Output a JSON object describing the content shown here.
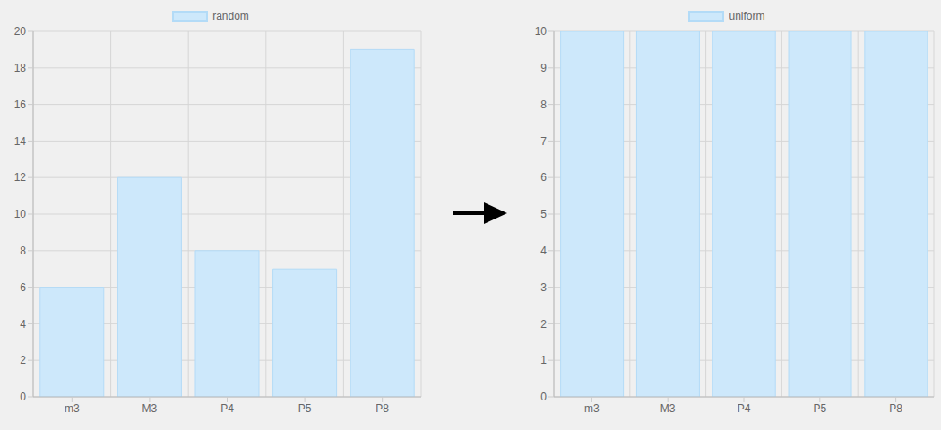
{
  "chart_data": [
    {
      "type": "bar",
      "categories": [
        "m3",
        "M3",
        "P4",
        "P5",
        "P8"
      ],
      "series": [
        {
          "name": "random",
          "color": "#cde8fb",
          "values": [
            6,
            12,
            8,
            7,
            19
          ]
        }
      ],
      "ylim": [
        0,
        20
      ],
      "yticks": [
        0,
        2,
        4,
        6,
        8,
        10,
        12,
        14,
        16,
        18,
        20
      ],
      "grid": true,
      "legend": "top"
    },
    {
      "type": "bar",
      "categories": [
        "m3",
        "M3",
        "P4",
        "P5",
        "P8"
      ],
      "series": [
        {
          "name": "uniform",
          "color": "#cde8fb",
          "values": [
            10,
            10,
            10,
            10,
            10
          ]
        }
      ],
      "ylim": [
        0,
        10
      ],
      "yticks": [
        0,
        1,
        2,
        3,
        4,
        5,
        6,
        7,
        8,
        9,
        10
      ],
      "grid": true,
      "legend": "top"
    }
  ]
}
